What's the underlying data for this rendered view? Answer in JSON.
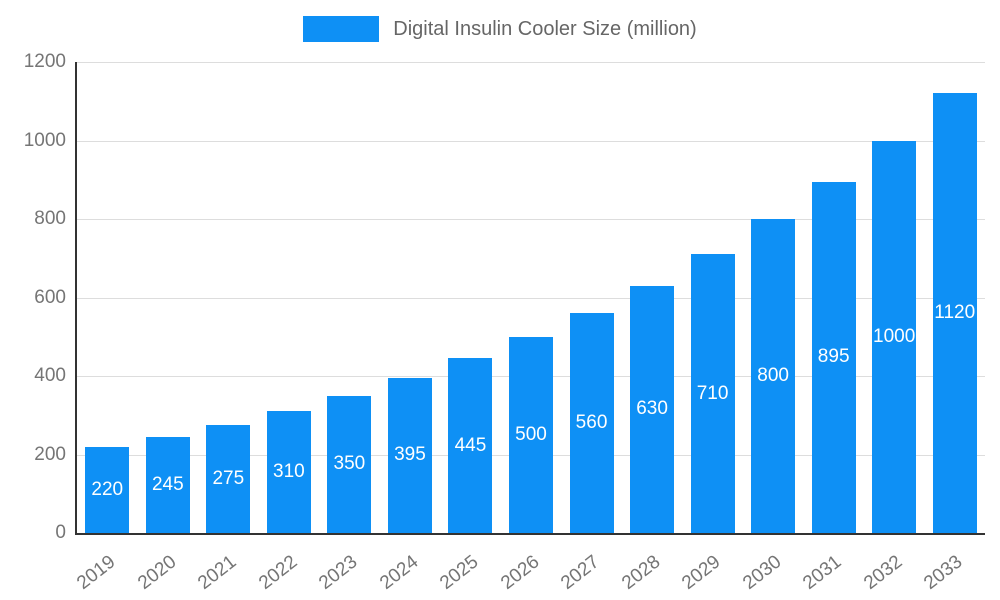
{
  "legend": {
    "label": "Digital Insulin Cooler Size (million)"
  },
  "chart_data": {
    "type": "bar",
    "title": "Digital Insulin Cooler Size (million)",
    "categories": [
      "2019",
      "2020",
      "2021",
      "2022",
      "2023",
      "2024",
      "2025",
      "2026",
      "2027",
      "2028",
      "2029",
      "2030",
      "2031",
      "2032",
      "2033"
    ],
    "values": [
      220,
      245,
      275,
      310,
      350,
      395,
      445,
      500,
      560,
      630,
      710,
      800,
      895,
      1000,
      1120
    ],
    "xlabel": "",
    "ylabel": "",
    "ylim": [
      0,
      1200
    ],
    "ytick_step": 200,
    "grid": true,
    "legend_position": "top",
    "bar_color": "#0e90f5",
    "bar_value_label_color": "#ffffff",
    "axis_text_color": "#757575",
    "legend_text_color": "#666666",
    "grid_color": "#dddddd",
    "axis_line_color": "#333333"
  }
}
